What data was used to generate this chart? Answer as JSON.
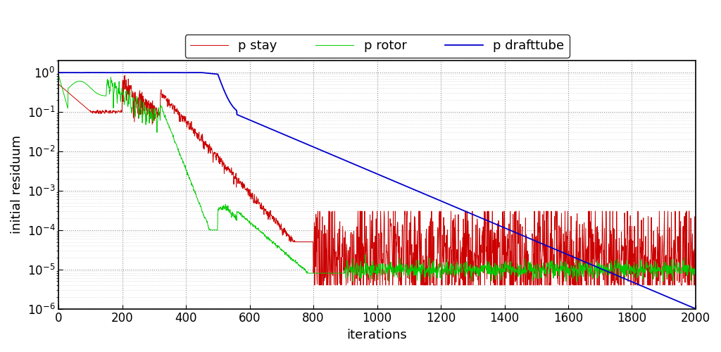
{
  "xlabel": "iterations",
  "ylabel": "initial residuum",
  "xlim": [
    0,
    2000
  ],
  "ylim": [
    1e-06,
    2.0
  ],
  "legend_labels": [
    "p stay",
    "p rotor",
    "p drafttube"
  ],
  "line_colors": [
    "#cc0000",
    "#00cc00",
    "#0000cc"
  ],
  "background_color": "#ffffff",
  "grid_color": "#888888",
  "font_size": 13
}
